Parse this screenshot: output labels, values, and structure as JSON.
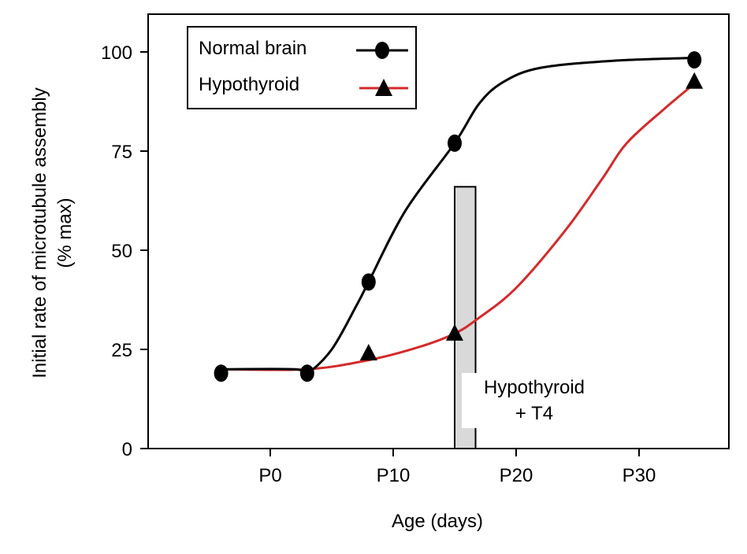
{
  "chart_data": {
    "type": "line",
    "title": "",
    "xlabel": "Age (days)",
    "ylabel_line1": "Initial rate of microtubule assembly",
    "ylabel_line2": "(% max)",
    "xlim": [
      -10,
      37
    ],
    "ylim": [
      0,
      100
    ],
    "x_ticks": [
      {
        "value": 0,
        "label": "P0"
      },
      {
        "value": 10,
        "label": "P10"
      },
      {
        "value": 20,
        "label": "P20"
      },
      {
        "value": 30,
        "label": "P30"
      }
    ],
    "y_ticks": [
      {
        "value": 0,
        "label": "0"
      },
      {
        "value": 25,
        "label": "25"
      },
      {
        "value": 50,
        "label": "50"
      },
      {
        "value": 75,
        "label": "75"
      },
      {
        "value": 100,
        "label": "100"
      }
    ],
    "grid": false,
    "legend_position": "top-left",
    "series": [
      {
        "name": "Normal brain",
        "color": "#000000",
        "marker": "circle",
        "points": [
          [
            -4,
            19
          ],
          [
            3,
            19
          ],
          [
            8,
            42
          ],
          [
            15,
            77
          ],
          [
            34.5,
            98
          ]
        ],
        "curve": [
          [
            -4,
            20
          ],
          [
            2,
            20
          ],
          [
            3,
            19
          ],
          [
            5,
            25
          ],
          [
            7,
            36
          ],
          [
            8,
            42
          ],
          [
            11,
            60
          ],
          [
            15,
            77
          ],
          [
            17,
            87
          ],
          [
            19,
            92.5
          ],
          [
            22,
            96
          ],
          [
            28,
            97.8
          ],
          [
            34.5,
            98.5
          ]
        ]
      },
      {
        "name": "Hypothyroid",
        "color": "#d42a2a",
        "marker": "triangle",
        "points": [
          [
            8,
            24
          ],
          [
            15,
            29
          ],
          [
            34.5,
            92.5
          ]
        ],
        "curve": [
          [
            -4,
            20
          ],
          [
            3,
            20
          ],
          [
            8,
            22.3
          ],
          [
            12,
            25.5
          ],
          [
            15,
            29
          ],
          [
            17,
            33
          ],
          [
            20,
            40.5
          ],
          [
            24,
            55
          ],
          [
            27,
            68
          ],
          [
            29,
            77
          ],
          [
            32,
            85.5
          ],
          [
            34.5,
            92
          ]
        ]
      }
    ],
    "annotation": {
      "bar_x": [
        15,
        16.7
      ],
      "bar_top": 66,
      "bar_color": "#d9d9d9",
      "label_line1": "Hypothyroid",
      "label_line2": "+ T4"
    }
  }
}
